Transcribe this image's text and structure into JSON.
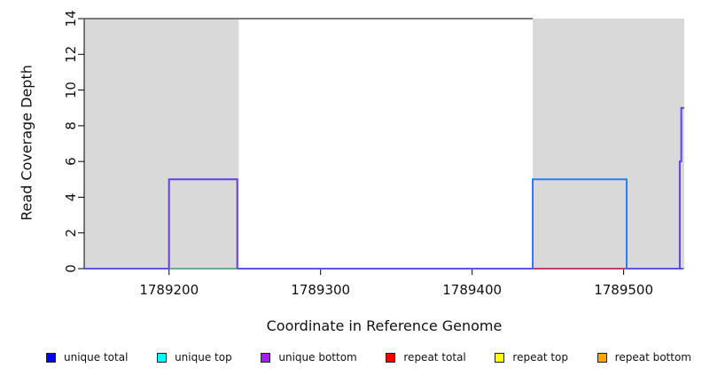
{
  "chart_data": {
    "type": "area",
    "title": "",
    "xlabel": "Coordinate in Reference Genome",
    "ylabel": "Read Coverage Depth",
    "xlim": [
      1789144,
      1789540
    ],
    "ylim": [
      0,
      14
    ],
    "x_ticks": [
      1789200,
      1789300,
      1789400,
      1789500
    ],
    "y_ticks": [
      0,
      2,
      4,
      6,
      8,
      10,
      12,
      14
    ],
    "grid": "off",
    "legend_position": "bottom",
    "shaded_regions": [
      {
        "name": "repeat-region-left",
        "x0": 1789144,
        "x1": 1789246,
        "color": "#d9d9d9"
      },
      {
        "name": "repeat-region-right",
        "x0": 1789440,
        "x1": 1789540,
        "color": "#d9d9d9"
      }
    ],
    "lines": [
      {
        "name": "clipped-coverage-line",
        "color": "#7a7a7a",
        "width": 2,
        "points": [
          [
            1789144,
            14
          ],
          [
            1789440,
            14
          ]
        ]
      },
      {
        "name": "zero-baseline",
        "color": "#5c52e4",
        "width": 2,
        "points": [
          [
            1789144,
            0
          ],
          [
            1789540,
            0
          ]
        ]
      },
      {
        "name": "unique-top-left-segment",
        "color": "#6ec86e",
        "width": 1.5,
        "points": [
          [
            1789200,
            0
          ],
          [
            1789245,
            0
          ]
        ]
      },
      {
        "name": "repeat-total-right-segment",
        "color": "#e23a44",
        "width": 1.5,
        "points": [
          [
            1789440,
            0
          ],
          [
            1789502,
            0
          ]
        ]
      },
      {
        "name": "unique-bottom-left-box",
        "color": "#5f42e0",
        "width": 2,
        "points": [
          [
            1789200,
            0
          ],
          [
            1789200,
            5
          ],
          [
            1789245,
            5
          ],
          [
            1789245,
            0
          ]
        ]
      },
      {
        "name": "unique-total-right-box",
        "color": "#2f7bf2",
        "width": 2,
        "points": [
          [
            1789440,
            0
          ],
          [
            1789440,
            5
          ],
          [
            1789502,
            5
          ],
          [
            1789502,
            0
          ]
        ]
      },
      {
        "name": "right-edge-spike",
        "color": "#5f42e0",
        "width": 2,
        "points": [
          [
            1789537,
            0
          ],
          [
            1789537,
            6
          ],
          [
            1789538,
            6
          ],
          [
            1789538,
            9
          ],
          [
            1789540,
            9
          ]
        ]
      },
      {
        "name": "unique-top-right-edge",
        "color": "#6ec86e",
        "width": 2,
        "points": [
          [
            1789539,
            0
          ],
          [
            1789540,
            0
          ]
        ]
      }
    ]
  },
  "legend": [
    {
      "label": "unique total",
      "color": "#0000ff"
    },
    {
      "label": "unique top",
      "color": "#00ffff"
    },
    {
      "label": "unique bottom",
      "color": "#a020f0"
    },
    {
      "label": "repeat total",
      "color": "#ff0000"
    },
    {
      "label": "repeat top",
      "color": "#ffff00"
    },
    {
      "label": "repeat bottom",
      "color": "#ffa500"
    }
  ]
}
